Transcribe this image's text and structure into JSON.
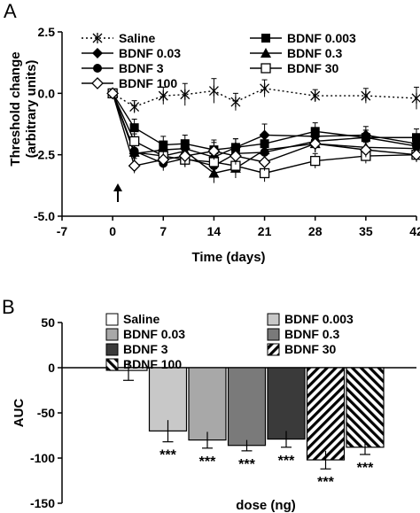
{
  "chart_data": [
    {
      "panel_label": "A",
      "type": "line",
      "xlabel": "Time (days)",
      "ylabel": "Threshold change (arbitrary units)",
      "ylabel_lines": [
        "Threshold change",
        "(arbitrary units)"
      ],
      "xlim": [
        -7,
        42
      ],
      "ylim": [
        -5.0,
        2.5
      ],
      "xticks": [
        -7,
        0,
        7,
        14,
        21,
        28,
        35,
        42
      ],
      "yticks": [
        2.5,
        0.0,
        -2.5,
        -5.0
      ],
      "ytick_labels": [
        "2.5",
        "0.0",
        "-2.5",
        "-5.0"
      ],
      "legend_placement": "top",
      "annotation": {
        "type": "arrow",
        "direction": "up",
        "x": 0
      },
      "series": [
        {
          "name": "Saline",
          "marker": "asterisk",
          "line": "dotted",
          "x": [
            0,
            3,
            7,
            10,
            14,
            17,
            21,
            28,
            35,
            42
          ],
          "y": [
            0.0,
            -0.55,
            -0.1,
            -0.05,
            0.1,
            -0.35,
            0.2,
            -0.1,
            -0.1,
            -0.2
          ],
          "err": [
            0.1,
            0.25,
            0.35,
            0.45,
            0.5,
            0.35,
            0.35,
            0.25,
            0.3,
            0.45
          ]
        },
        {
          "name": "BDNF 0.003",
          "marker": "square-filled",
          "line": "solid",
          "x": [
            0,
            3,
            7,
            10,
            14,
            17,
            21,
            28,
            35,
            42
          ],
          "y": [
            0.0,
            -1.4,
            -2.1,
            -2.05,
            -2.3,
            -2.2,
            -2.05,
            -1.55,
            -1.8,
            -1.8
          ],
          "err": [
            0.1,
            0.35,
            0.35,
            0.35,
            0.4,
            0.35,
            0.35,
            0.35,
            0.3,
            0.35
          ]
        },
        {
          "name": "BDNF 0.03",
          "marker": "diamond-filled",
          "line": "solid",
          "x": [
            0,
            3,
            7,
            10,
            14,
            17,
            21,
            28,
            35,
            42
          ],
          "y": [
            0.0,
            -2.45,
            -2.3,
            -2.25,
            -2.6,
            -2.2,
            -1.7,
            -1.75,
            -1.7,
            -2.05
          ],
          "err": [
            0.1,
            0.35,
            0.35,
            0.3,
            0.35,
            0.35,
            0.45,
            0.35,
            0.35,
            0.35
          ]
        },
        {
          "name": "BDNF 0.3",
          "marker": "triangle-filled",
          "line": "solid",
          "x": [
            0,
            3,
            7,
            10,
            14,
            17,
            21,
            28,
            35,
            42
          ],
          "y": [
            0.0,
            -2.4,
            -2.55,
            -2.35,
            -3.25,
            -3.05,
            -2.3,
            -2.05,
            -2.2,
            -2.25
          ],
          "err": [
            0.1,
            0.35,
            0.35,
            0.3,
            0.4,
            0.4,
            0.35,
            0.35,
            0.3,
            0.35
          ]
        },
        {
          "name": "BDNF 3",
          "marker": "circle-filled",
          "line": "solid",
          "x": [
            0,
            3,
            7,
            10,
            14,
            17,
            21,
            28,
            35,
            42
          ],
          "y": [
            0.0,
            -2.35,
            -2.85,
            -2.65,
            -2.95,
            -2.45,
            -2.4,
            -1.95,
            -1.8,
            -2.15
          ],
          "err": [
            0.1,
            0.35,
            0.3,
            0.35,
            0.35,
            0.35,
            0.35,
            0.35,
            0.3,
            0.3
          ]
        },
        {
          "name": "BDNF 30",
          "marker": "square-open",
          "line": "solid",
          "x": [
            0,
            3,
            7,
            10,
            14,
            17,
            21,
            28,
            35,
            42
          ],
          "y": [
            0.0,
            -1.95,
            -2.55,
            -2.7,
            -2.8,
            -2.95,
            -3.25,
            -2.75,
            -2.55,
            -2.5
          ],
          "err": [
            0.1,
            0.3,
            0.35,
            0.3,
            0.35,
            0.35,
            0.35,
            0.3,
            0.3,
            0.3
          ]
        },
        {
          "name": "BDNF 100",
          "marker": "diamond-open",
          "line": "solid",
          "x": [
            0,
            3,
            7,
            10,
            14,
            17,
            21,
            28,
            35,
            42
          ],
          "y": [
            0.0,
            -2.95,
            -2.7,
            -2.55,
            -2.35,
            -2.55,
            -2.8,
            -2.05,
            -2.3,
            -2.5
          ],
          "err": [
            0.1,
            0.3,
            0.35,
            0.35,
            0.35,
            0.35,
            0.35,
            0.35,
            0.3,
            0.3
          ]
        }
      ]
    },
    {
      "panel_label": "B",
      "type": "bar",
      "xlabel": "dose (ng)",
      "ylabel": "AUC",
      "ylim": [
        -150,
        50
      ],
      "yticks": [
        50,
        0,
        -50,
        -100,
        -150
      ],
      "legend_placement": "top",
      "categories": [
        "Saline",
        "BDNF 0.003",
        "BDNF 0.03",
        "BDNF 0.3",
        "BDNF 3",
        "BDNF 30",
        "BDNF 100"
      ],
      "values": [
        -3,
        -70,
        -80,
        -86,
        -79,
        -102,
        -88
      ],
      "errors": [
        11,
        12,
        9,
        6,
        9,
        10,
        8
      ],
      "fills": [
        "white",
        "light-gray",
        "gray-light",
        "gray",
        "dark-gray",
        "hatch-white",
        "hatch-black"
      ],
      "significance": [
        "",
        "***",
        "***",
        "***",
        "***",
        "***",
        "***"
      ]
    }
  ]
}
